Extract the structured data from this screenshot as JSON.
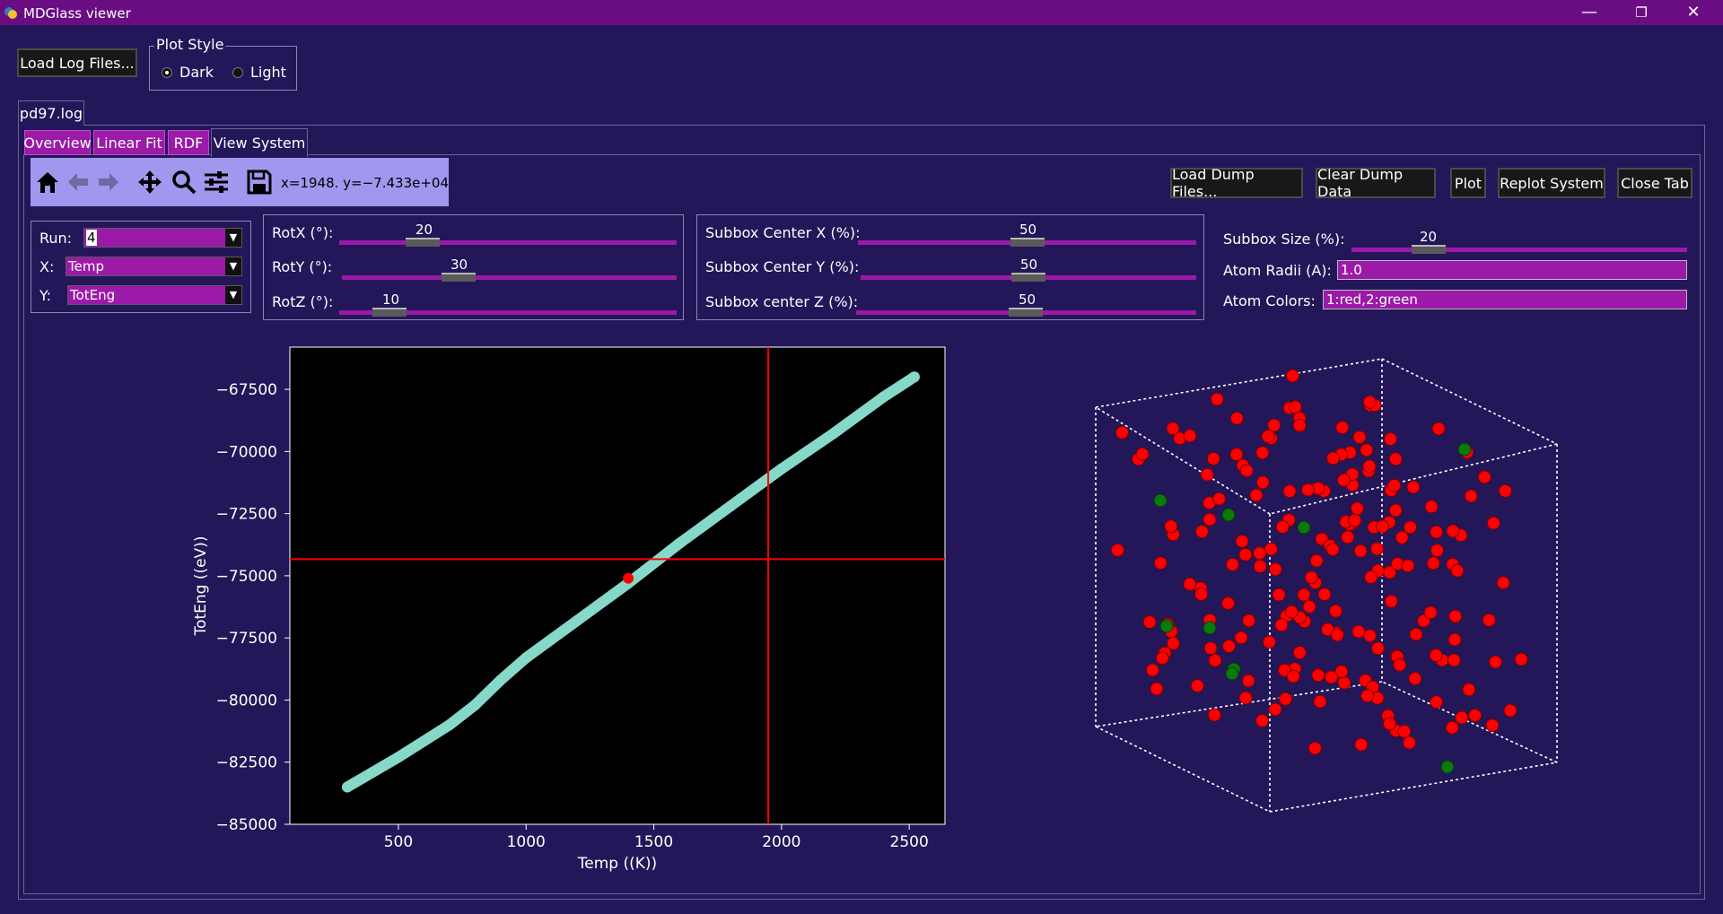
{
  "window": {
    "title": "MDGlass viewer",
    "minimize": "—",
    "restore": "❐",
    "close": "✕"
  },
  "top": {
    "load_log_label": "Load Log Files...",
    "plot_style": {
      "legend": "Plot Style",
      "dark": "Dark",
      "light": "Light",
      "selected": "Dark"
    }
  },
  "file_tab": "pd97.log",
  "tabs": [
    {
      "label": "Overview",
      "active": false
    },
    {
      "label": "Linear Fit",
      "active": false
    },
    {
      "label": "RDF",
      "active": false
    },
    {
      "label": "View System",
      "active": true
    }
  ],
  "toolbar": {
    "icons": [
      "home-icon",
      "back-arrow-icon",
      "forward-arrow-icon",
      "pan-icon",
      "zoom-icon",
      "configure-subplots-icon",
      "save-icon"
    ],
    "coords": "x=1948.  y=−7.433e+04"
  },
  "actions": {
    "load_dump": "Load Dump Files...",
    "clear_dump": "Clear Dump Data",
    "plot": "Plot",
    "replot": "Replot System",
    "close_tab": "Close Tab"
  },
  "selectors": {
    "run_label": "Run:",
    "run_value": "4",
    "x_label": "X:",
    "x_value": "Temp",
    "y_label": "Y:",
    "y_value": "TotEng"
  },
  "rotation": {
    "x_label": "RotX (°):",
    "x_value": 20,
    "y_label": "RotY (°):",
    "y_value": 30,
    "z_label": "RotZ (°):",
    "z_value": 10
  },
  "subbox": {
    "cx_label": "Subbox Center X (%):",
    "cx_value": 50,
    "cy_label": "Subbox Center Y (%):",
    "cy_value": 50,
    "cz_label": "Subbox center Z (%):",
    "cz_value": 50,
    "size_label": "Subbox Size (%):",
    "size_value": 20
  },
  "atoms": {
    "radii_label": "Atom Radii (A):",
    "radii_value": "1.0",
    "colors_label": "Atom Colors:",
    "colors_value": "1:red,2:green"
  },
  "chart_data": {
    "type": "scatter",
    "xlabel": "Temp ((K))",
    "ylabel": "TotEng ((eV))",
    "xlim": [
      75,
      2640
    ],
    "ylim": [
      -85000,
      -65800
    ],
    "xticks": [
      500,
      1000,
      1500,
      2000,
      2500
    ],
    "yticks": [
      -85000,
      -82500,
      -80000,
      -77500,
      -75000,
      -72500,
      -70000,
      -67500
    ],
    "xtick_labels": [
      "500",
      "1000",
      "1500",
      "2000",
      "2500"
    ],
    "ytick_labels": [
      "−85000",
      "−82500",
      "−80000",
      "−77500",
      "−75000",
      "−72500",
      "−70000",
      "−67500"
    ],
    "series": [
      {
        "color": "#86d9c9",
        "x": [
          300,
          500,
          700,
          800,
          900,
          1000,
          1200,
          1400,
          1500,
          1600,
          1800,
          2000,
          2200,
          2400,
          2520
        ],
        "y": [
          -83500,
          -82300,
          -81000,
          -80200,
          -79200,
          -78300,
          -76800,
          -75300,
          -74500,
          -73700,
          -72200,
          -70700,
          -69300,
          -67800,
          -67000
        ]
      }
    ],
    "marker_point": {
      "x": 1400,
      "y": -75100,
      "color": "#ff0000"
    },
    "crosshair": {
      "x": 1948,
      "y": -74330,
      "color": "#ff0000"
    },
    "background": "#000000"
  },
  "system_view": {
    "atom_colors": {
      "type1": "#ff0000",
      "type2": "#0a7a0a"
    },
    "atom_count_type2": 9
  }
}
